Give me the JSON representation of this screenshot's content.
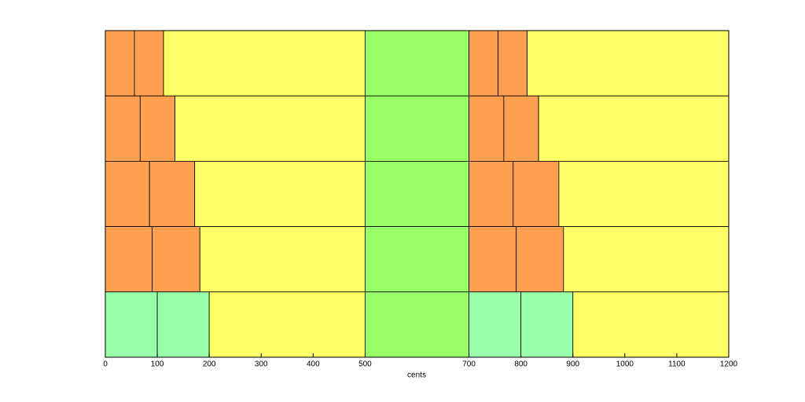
{
  "chart_data": {
    "type": "stacked-barh",
    "x_label": "cents",
    "xlim": [
      0,
      1200
    ],
    "xticks": [
      0,
      100,
      200,
      300,
      400,
      500,
      700,
      800,
      900,
      1000,
      1100,
      1200
    ],
    "series": [
      {
        "values": [
          56,
          67,
          85,
          90,
          100
        ],
        "colors": [
          "#ff9f50",
          "#ff9f50",
          "#ff9f50",
          "#ff9f50",
          "#99ffaa"
        ]
      },
      {
        "values": [
          56,
          67,
          87,
          92,
          100
        ],
        "colors": [
          "#ff9f50",
          "#ff9f50",
          "#ff9f50",
          "#ff9f50",
          "#99ffaa"
        ]
      },
      {
        "values": [
          388,
          366,
          328,
          318,
          300
        ],
        "colors": [
          "#ffff66",
          "#ffff66",
          "#ffff66",
          "#ffff66",
          "#ffff66"
        ]
      },
      {
        "values": [
          200,
          200,
          200,
          200,
          200
        ],
        "colors": [
          "#99ff66",
          "#99ff66",
          "#99ff66",
          "#99ff66",
          "#99ff66"
        ]
      },
      {
        "values": [
          56,
          67,
          85,
          91,
          100
        ],
        "colors": [
          "#ff9f50",
          "#ff9f50",
          "#ff9f50",
          "#ff9f50",
          "#99ffaa"
        ]
      },
      {
        "values": [
          56,
          67,
          88,
          91,
          100
        ],
        "colors": [
          "#ff9f50",
          "#ff9f50",
          "#ff9f50",
          "#ff9f50",
          "#99ffaa"
        ]
      },
      {
        "values": [
          388,
          366,
          327,
          318,
          300
        ],
        "colors": [
          "#ffff66",
          "#ffff66",
          "#ffff66",
          "#ffff66",
          "#ffff66"
        ]
      }
    ]
  }
}
